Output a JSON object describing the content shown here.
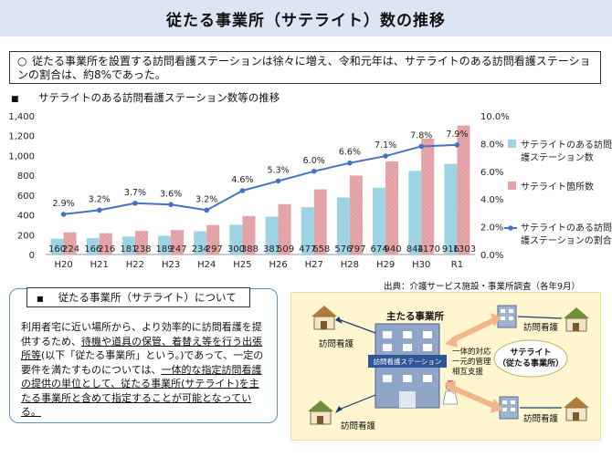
{
  "page": {
    "title": "従たる事業所（サテライト）数の推移",
    "summary_mark": "○",
    "summary_text": "従たる事業所を設置する訪問看護ステーションは徐々に増え、令和元年は、サテライトのある訪問看護ステーションの割合は、約8%であった。",
    "chart_heading_bullet": "■",
    "chart_heading": "サテライトのある訪問看護ステーション数等の推移",
    "source": "出典：介護サービス施設・事業所調査（各年9月）"
  },
  "chart_data": {
    "type": "bar",
    "categories": [
      "H20",
      "H21",
      "H22",
      "H23",
      "H24",
      "H25",
      "H26",
      "H27",
      "H28",
      "H29",
      "H30",
      "R1"
    ],
    "series": [
      {
        "name": "サテライトのある訪問看護ステーション数",
        "kind": "bar",
        "axis": "left",
        "color": "#9dd3e3",
        "values": [
          160,
          166,
          181,
          189,
          234,
          300,
          381,
          477,
          576,
          674,
          844,
          916
        ]
      },
      {
        "name": "サテライト箇所数",
        "kind": "bar",
        "axis": "left",
        "color": "#e3a3a5",
        "pattern": "hatched",
        "values": [
          224,
          216,
          238,
          247,
          297,
          388,
          509,
          658,
          797,
          940,
          1170,
          1303
        ]
      },
      {
        "name": "サテライトのある訪問看護ステーションの割合",
        "kind": "line",
        "axis": "right",
        "color": "#4472c4",
        "values": [
          2.9,
          3.2,
          3.7,
          3.6,
          3.2,
          4.6,
          5.3,
          6.0,
          6.6,
          7.1,
          7.8,
          7.9
        ],
        "labels": [
          "2.9%",
          "3.2%",
          "3.7%",
          "3.6%",
          "3.2%",
          "4.6%",
          "5.3%",
          "6.0%",
          "6.6%",
          "7.1%",
          "7.8%",
          "7.9%"
        ]
      }
    ],
    "left_axis": {
      "ylim": [
        0,
        1400
      ],
      "ticks": [
        "0",
        "200",
        "400",
        "600",
        "800",
        "1,000",
        "1,200",
        "1,400"
      ]
    },
    "right_axis": {
      "ylim": [
        0,
        10
      ],
      "ticks": [
        "0.0%",
        "2.0%",
        "4.0%",
        "6.0%",
        "8.0%",
        "10.0%"
      ]
    },
    "legend_position": "right",
    "grid": false
  },
  "note": {
    "heading_bullet": "■",
    "heading": "従たる事業所（サテライト）について",
    "body_1": "利用者宅に近い場所から、より効率的に訪問看護を提供するため、",
    "body_u1": "待機や道具の保管、着替え等を行う出張所等",
    "body_2": "(以下「従たる事業所」という。)であって、一定の要件を満たすものについては、",
    "body_u2": "一体的な指定訪問看護の提供の単位として、従たる事業所(サテライト)を主たる事業所と含めて指定することが可能となっている。"
  },
  "diagram": {
    "main_office": "主たる事業所",
    "station_sign": "訪問看護ステーション",
    "home_visit": "訪問看護",
    "relation_lines": [
      "一体的対応",
      "一元的管理",
      "相互支援"
    ],
    "satellite_title": "サテライト",
    "satellite_sub": "（従たる事業所）"
  }
}
